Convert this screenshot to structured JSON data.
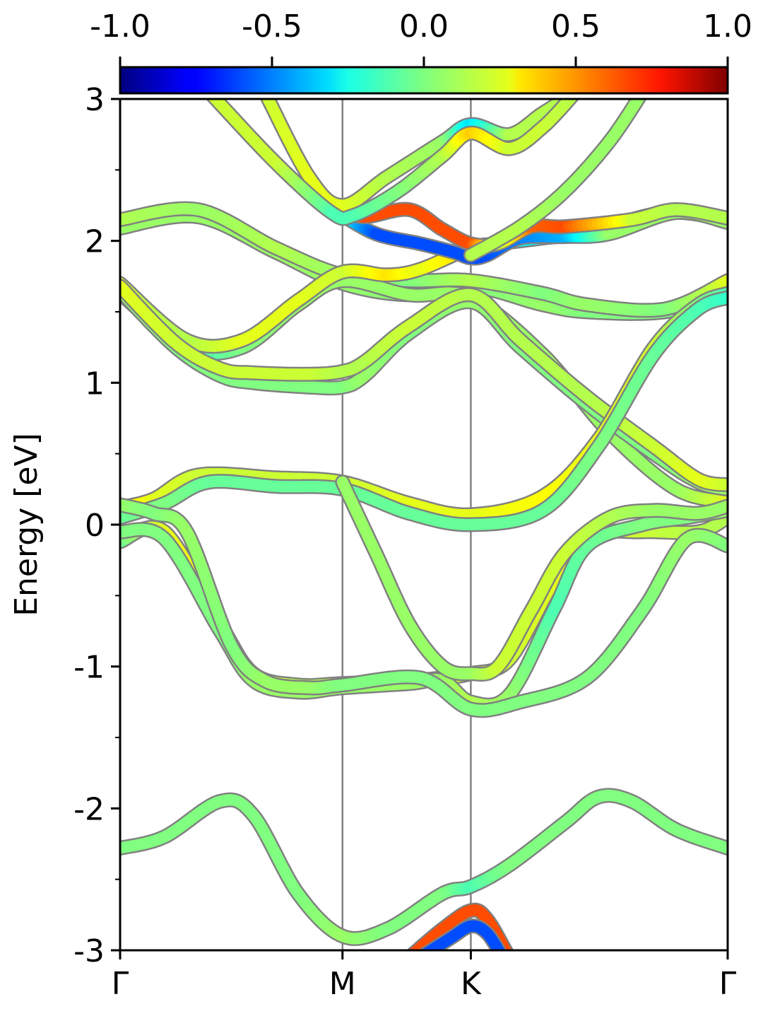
{
  "colorbar": {
    "ticks": [
      "-1.0",
      "-0.5",
      "0.0",
      "0.5",
      "1.0"
    ],
    "tick_values": [
      -1.0,
      -0.5,
      0.0,
      0.5,
      1.0
    ],
    "range": [
      -1.0,
      1.0
    ],
    "colormap": "jet"
  },
  "chart_data": {
    "type": "line",
    "title": "",
    "xlabel": "",
    "ylabel": "Energy [eV]",
    "ylim": [
      -3,
      3
    ],
    "yticks": [
      "3",
      "2",
      "1",
      "0",
      "-1",
      "-2",
      "-3"
    ],
    "ytick_values": [
      3,
      2,
      1,
      0,
      -1,
      -2,
      -3
    ],
    "k_points": [
      "Γ",
      "M",
      "K",
      "Γ"
    ],
    "k_positions": [
      0.0,
      1.0,
      1.577,
      2.732
    ],
    "grid": false,
    "colors": {
      "edge": "#808080",
      "divider": "#808080",
      "axes": "#000000"
    },
    "series": [
      {
        "points": [
          [
            0,
            2.09
          ],
          [
            0.35,
            2.17
          ],
          [
            0.7,
            1.92
          ],
          [
            1.0,
            1.7
          ],
          [
            1.3,
            1.62
          ],
          [
            1.577,
            1.68
          ],
          [
            1.9,
            1.55
          ],
          [
            2.1,
            1.5
          ],
          [
            2.45,
            1.5
          ],
          [
            2.732,
            1.63
          ]
        ],
        "c": [
          0.05,
          0.05,
          0.05,
          0.05,
          0.0,
          0.0,
          0.05,
          0.0,
          0.0,
          -0.05
        ]
      },
      {
        "points": [
          [
            0,
            2.15
          ],
          [
            0.35,
            2.22
          ],
          [
            0.7,
            1.95
          ],
          [
            1.0,
            1.76
          ],
          [
            1.3,
            1.72
          ],
          [
            1.577,
            1.72
          ],
          [
            1.9,
            1.63
          ],
          [
            2.1,
            1.55
          ],
          [
            2.45,
            1.52
          ],
          [
            2.732,
            1.72
          ]
        ],
        "c": [
          0.1,
          0.05,
          0.1,
          0.05,
          0.0,
          0.1,
          0.0,
          0.05,
          0.0,
          0.2
        ]
      },
      {
        "points": [
          [
            0,
            1.63
          ],
          [
            0.3,
            1.25
          ],
          [
            0.55,
            1.25
          ],
          [
            0.8,
            1.55
          ],
          [
            1.0,
            1.72
          ],
          [
            1.3,
            1.62
          ],
          [
            1.577,
            1.6
          ],
          [
            1.9,
            1.2
          ],
          [
            2.2,
            0.65
          ],
          [
            2.5,
            0.25
          ],
          [
            2.732,
            0.16
          ]
        ],
        "c": [
          -0.2,
          -0.15,
          0,
          0.05,
          0.05,
          0.05,
          0.05,
          0.05,
          0.05,
          0.05,
          0.2
        ]
      },
      {
        "points": [
          [
            0,
            1.7
          ],
          [
            0.3,
            1.3
          ],
          [
            0.55,
            1.3
          ],
          [
            0.8,
            1.58
          ],
          [
            1.0,
            1.78
          ],
          [
            1.2,
            1.76
          ],
          [
            1.35,
            1.8
          ],
          [
            1.577,
            1.95
          ],
          [
            1.7,
            1.98
          ],
          [
            1.9,
            2.02
          ],
          [
            2.1,
            2.06
          ],
          [
            2.45,
            2.2
          ],
          [
            2.732,
            2.15
          ]
        ],
        "c": [
          0.15,
          0.1,
          0.2,
          0.2,
          0.15,
          0.3,
          0.2,
          0.35,
          -0.2,
          -0.3,
          0.05,
          0.05,
          0.05
        ]
      },
      {
        "points": [
          [
            0,
            1.65
          ],
          [
            0.25,
            1.25
          ],
          [
            0.45,
            1.05
          ],
          [
            0.6,
            1.0
          ],
          [
            0.85,
            0.97
          ],
          [
            1.0,
            0.97
          ],
          [
            1.1,
            1.05
          ],
          [
            1.3,
            1.35
          ],
          [
            1.577,
            1.57
          ],
          [
            1.8,
            1.25
          ],
          [
            2.1,
            0.85
          ],
          [
            2.4,
            0.5
          ],
          [
            2.6,
            0.3
          ],
          [
            2.732,
            0.25
          ]
        ],
        "c": [
          0.05,
          0,
          0,
          0,
          0,
          0,
          0.05,
          0,
          0.05,
          0,
          0,
          0,
          0.05,
          0.05
        ]
      },
      {
        "points": [
          [
            0,
            1.68
          ],
          [
            0.25,
            1.28
          ],
          [
            0.45,
            1.1
          ],
          [
            0.6,
            1.07
          ],
          [
            0.85,
            1.06
          ],
          [
            1.0,
            1.08
          ],
          [
            1.1,
            1.15
          ],
          [
            1.3,
            1.4
          ],
          [
            1.577,
            1.62
          ],
          [
            1.8,
            1.3
          ],
          [
            2.1,
            0.9
          ],
          [
            2.4,
            0.55
          ],
          [
            2.6,
            0.32
          ],
          [
            2.732,
            0.28
          ]
        ],
        "c": [
          0.2,
          0.15,
          0.15,
          0.15,
          0.15,
          0.1,
          0.1,
          0.15,
          0.1,
          0.1,
          0.1,
          0.15,
          0.2,
          0.15
        ]
      },
      {
        "points": [
          [
            0,
            0.12
          ],
          [
            0.15,
            0.18
          ],
          [
            0.35,
            0.35
          ],
          [
            0.7,
            0.33
          ],
          [
            1.0,
            0.3
          ],
          [
            1.3,
            0.15
          ],
          [
            1.577,
            0.07
          ],
          [
            1.9,
            0.2
          ],
          [
            2.15,
            0.6
          ],
          [
            2.4,
            1.25
          ],
          [
            2.6,
            1.55
          ],
          [
            2.732,
            1.63
          ]
        ],
        "c": [
          0.35,
          0.2,
          0.15,
          0.15,
          0.15,
          0.2,
          0.2,
          0.25,
          0.2,
          0.15,
          0.0,
          -0.1
        ]
      },
      {
        "points": [
          [
            0,
            0.05
          ],
          [
            0.2,
            0.15
          ],
          [
            0.4,
            0.3
          ],
          [
            0.7,
            0.27
          ],
          [
            1.0,
            0.25
          ],
          [
            1.3,
            0.08
          ],
          [
            1.577,
            0.0
          ],
          [
            1.9,
            0.1
          ],
          [
            2.15,
            0.55
          ],
          [
            2.4,
            1.2
          ],
          [
            2.6,
            1.52
          ],
          [
            2.732,
            1.6
          ]
        ],
        "c": [
          -0.05,
          0,
          -0.05,
          -0.05,
          -0.05,
          -0.05,
          -0.05,
          -0.05,
          0,
          -0.05,
          -0.1,
          -0.15
        ]
      },
      {
        "points": [
          [
            0,
            -0.12
          ],
          [
            0.2,
            -0.05
          ],
          [
            0.45,
            -0.7
          ],
          [
            0.6,
            -1.05
          ],
          [
            0.8,
            -1.13
          ],
          [
            1.0,
            -1.12
          ],
          [
            1.3,
            -1.1
          ],
          [
            1.45,
            -1.08
          ],
          [
            1.577,
            -1.05
          ],
          [
            1.75,
            -0.95
          ],
          [
            1.95,
            -0.4
          ],
          [
            2.1,
            -0.08
          ],
          [
            2.35,
            -0.05
          ],
          [
            2.6,
            -0.05
          ],
          [
            2.732,
            0.05
          ]
        ],
        "c": [
          -0.05,
          0.2,
          0.25,
          0.15,
          0.1,
          0.1,
          0.1,
          0.15,
          0.15,
          0.15,
          0.2,
          0.2,
          0.15,
          0.1,
          0.1
        ]
      },
      {
        "points": [
          [
            0,
            -0.05
          ],
          [
            0.2,
            -0.1
          ],
          [
            0.45,
            -0.75
          ],
          [
            0.6,
            -1.1
          ],
          [
            0.8,
            -1.18
          ],
          [
            1.0,
            -1.15
          ],
          [
            1.3,
            -1.12
          ],
          [
            1.45,
            -1.1
          ],
          [
            1.577,
            -1.25
          ],
          [
            1.75,
            -1.2
          ],
          [
            1.95,
            -0.6
          ],
          [
            2.1,
            -0.15
          ],
          [
            2.35,
            0.0
          ],
          [
            2.55,
            0.05
          ],
          [
            2.732,
            0.1
          ]
        ],
        "c": [
          0.0,
          0.0,
          0.0,
          0.05,
          0.05,
          0.05,
          0.05,
          0.05,
          0.1,
          0.05,
          -0.1,
          -0.05,
          0.0,
          0.0,
          0.05
        ]
      },
      {
        "points": [
          [
            0,
            0.14
          ],
          [
            0.15,
            0.08
          ],
          [
            0.3,
            -0.05
          ],
          [
            0.5,
            -0.85
          ],
          [
            0.65,
            -1.1
          ],
          [
            0.85,
            -1.15
          ],
          [
            1.0,
            -1.13
          ],
          [
            1.35,
            -1.08
          ],
          [
            1.577,
            -1.3
          ],
          [
            1.8,
            -1.25
          ],
          [
            2.1,
            -1.08
          ],
          [
            2.35,
            -0.6
          ],
          [
            2.55,
            -0.1
          ],
          [
            2.732,
            -0.15
          ]
        ],
        "c": [
          0.05,
          0.0,
          0.05,
          0.0,
          0.05,
          0.05,
          0.0,
          0.0,
          0.0,
          0.0,
          0.0,
          0.0,
          0.05,
          0.0
        ]
      },
      {
        "points": [
          [
            1.0,
            0.3
          ],
          [
            1.15,
            -0.2
          ],
          [
            1.3,
            -0.7
          ],
          [
            1.45,
            -1.0
          ],
          [
            1.577,
            -1.05
          ],
          [
            1.7,
            -1.0
          ],
          [
            1.85,
            -0.6
          ],
          [
            2.0,
            -0.2
          ],
          [
            2.2,
            0.05
          ],
          [
            2.4,
            0.1
          ],
          [
            2.6,
            0.08
          ],
          [
            2.732,
            0.13
          ]
        ],
        "c": [
          0.05,
          0.05,
          0.05,
          0.05,
          0.05,
          0.15,
          0.15,
          0.15,
          0.1,
          0.05,
          0.05,
          0.05
        ]
      },
      {
        "points": [
          [
            0,
            -2.28
          ],
          [
            0.2,
            -2.2
          ],
          [
            0.45,
            -1.95
          ],
          [
            0.6,
            -2.05
          ],
          [
            0.8,
            -2.6
          ],
          [
            1.0,
            -2.9
          ],
          [
            1.2,
            -2.85
          ],
          [
            1.45,
            -2.6
          ],
          [
            1.577,
            -2.55
          ],
          [
            1.75,
            -2.4
          ],
          [
            2.0,
            -2.1
          ],
          [
            2.15,
            -1.92
          ],
          [
            2.3,
            -1.95
          ],
          [
            2.5,
            -2.15
          ],
          [
            2.732,
            -2.28
          ]
        ],
        "c": [
          0,
          0,
          0,
          0,
          0,
          0.05,
          0,
          0,
          -0.1,
          0,
          0,
          0,
          0,
          0,
          0
        ]
      },
      {
        "points": [
          [
            1.3,
            -3.05
          ],
          [
            1.45,
            -2.85
          ],
          [
            1.577,
            -2.72
          ],
          [
            1.65,
            -2.78
          ],
          [
            1.75,
            -3.05
          ]
        ],
        "c": [
          0.6,
          0.6,
          0.6,
          0.6,
          0.6
        ]
      },
      {
        "points": [
          [
            1.35,
            -3.05
          ],
          [
            1.48,
            -2.92
          ],
          [
            1.577,
            -2.83
          ],
          [
            1.65,
            -2.88
          ],
          [
            1.72,
            -3.05
          ]
        ],
        "c": [
          -0.6,
          -0.6,
          -0.6,
          -0.6,
          -0.6
        ]
      },
      {
        "points": [
          [
            0.98,
            2.2
          ],
          [
            1.15,
            2.05
          ],
          [
            1.35,
            1.98
          ],
          [
            1.5,
            1.92
          ],
          [
            1.577,
            1.88
          ],
          [
            1.65,
            1.9
          ],
          [
            1.8,
            2.02
          ],
          [
            2.0,
            2.03
          ],
          [
            2.2,
            2.05
          ],
          [
            2.5,
            2.2
          ],
          [
            2.732,
            2.13
          ]
        ],
        "c": [
          -0.15,
          -0.6,
          -0.6,
          -0.6,
          -0.6,
          -0.6,
          -0.5,
          -0.4,
          0.05,
          0.05,
          0.05
        ]
      },
      {
        "points": [
          [
            0.98,
            2.22
          ],
          [
            1.1,
            2.17
          ],
          [
            1.3,
            2.22
          ],
          [
            1.45,
            2.08
          ],
          [
            1.577,
            1.98
          ],
          [
            1.7,
            1.98
          ],
          [
            1.85,
            2.1
          ],
          [
            2.0,
            2.1
          ],
          [
            2.3,
            2.15
          ],
          [
            2.5,
            2.22
          ],
          [
            2.732,
            2.16
          ]
        ],
        "c": [
          0.3,
          0.6,
          0.6,
          0.6,
          0.6,
          0.1,
          0.55,
          0.6,
          0.15,
          0.1,
          0.1
        ]
      },
      {
        "points": [
          [
            0.65,
            3.05
          ],
          [
            0.85,
            2.45
          ],
          [
            1.0,
            2.25
          ],
          [
            1.2,
            2.45
          ],
          [
            1.45,
            2.7
          ],
          [
            1.577,
            2.82
          ],
          [
            1.75,
            2.75
          ],
          [
            1.9,
            2.9
          ],
          [
            2.05,
            3.05
          ]
        ],
        "c": [
          0.15,
          0.2,
          0.2,
          0.1,
          0.05,
          -0.3,
          0.1,
          0.1,
          0.1
        ]
      },
      {
        "points": [
          [
            0.4,
            3.05
          ],
          [
            0.7,
            2.55
          ],
          [
            0.95,
            2.2
          ],
          [
            1.05,
            2.18
          ],
          [
            1.25,
            2.35
          ],
          [
            1.45,
            2.6
          ],
          [
            1.577,
            2.76
          ],
          [
            1.75,
            2.65
          ],
          [
            1.9,
            2.8
          ],
          [
            2.05,
            3.05
          ]
        ],
        "c": [
          0.15,
          0.15,
          -0.1,
          -0.1,
          0.0,
          0.1,
          0.35,
          0.15,
          0.15,
          0.1
        ]
      },
      {
        "points": [
          [
            1.577,
            1.9
          ],
          [
            1.8,
            2.1
          ],
          [
            2.0,
            2.35
          ],
          [
            2.2,
            2.7
          ],
          [
            2.35,
            3.05
          ]
        ],
        "c": [
          0.1,
          0.1,
          0.05,
          0.05,
          0.05
        ]
      }
    ]
  }
}
